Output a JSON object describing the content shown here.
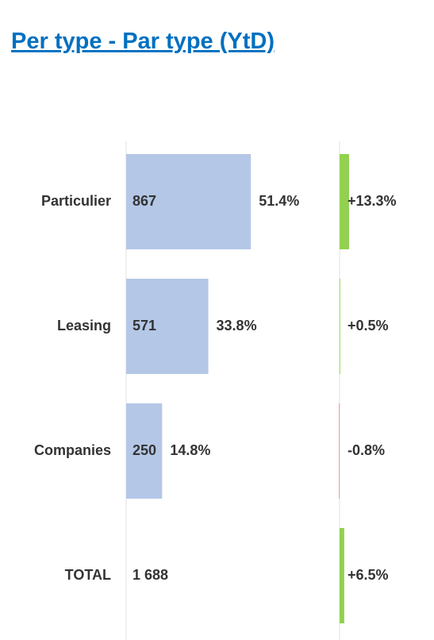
{
  "title": "Per type - Par type (YtD)",
  "chart_data": [
    {
      "type": "bar",
      "orientation": "horizontal",
      "categories": [
        "Particulier",
        "Leasing",
        "Companies"
      ],
      "values": [
        867,
        571,
        250
      ],
      "color": "#b4c7e7",
      "shares": [
        51.4,
        33.8,
        14.8
      ],
      "share_labels": [
        "51.4%",
        "33.8%",
        "14.8%"
      ],
      "xlim": [
        0,
        1500
      ],
      "total": {
        "label": "TOTAL",
        "value": 1688,
        "value_label": "1 688"
      }
    },
    {
      "type": "change",
      "orientation": "horizontal",
      "categories": [
        "Particulier",
        "Leasing",
        "Companies",
        "TOTAL"
      ],
      "values": [
        13.3,
        0.5,
        -0.8,
        6.5
      ],
      "value_labels": [
        "+13.3%",
        "+0.5%",
        "-0.8%",
        "+6.5%"
      ],
      "positive_color": "#92d050",
      "negative_color": "#ff7c80",
      "xlim": [
        0,
        100
      ]
    }
  ]
}
